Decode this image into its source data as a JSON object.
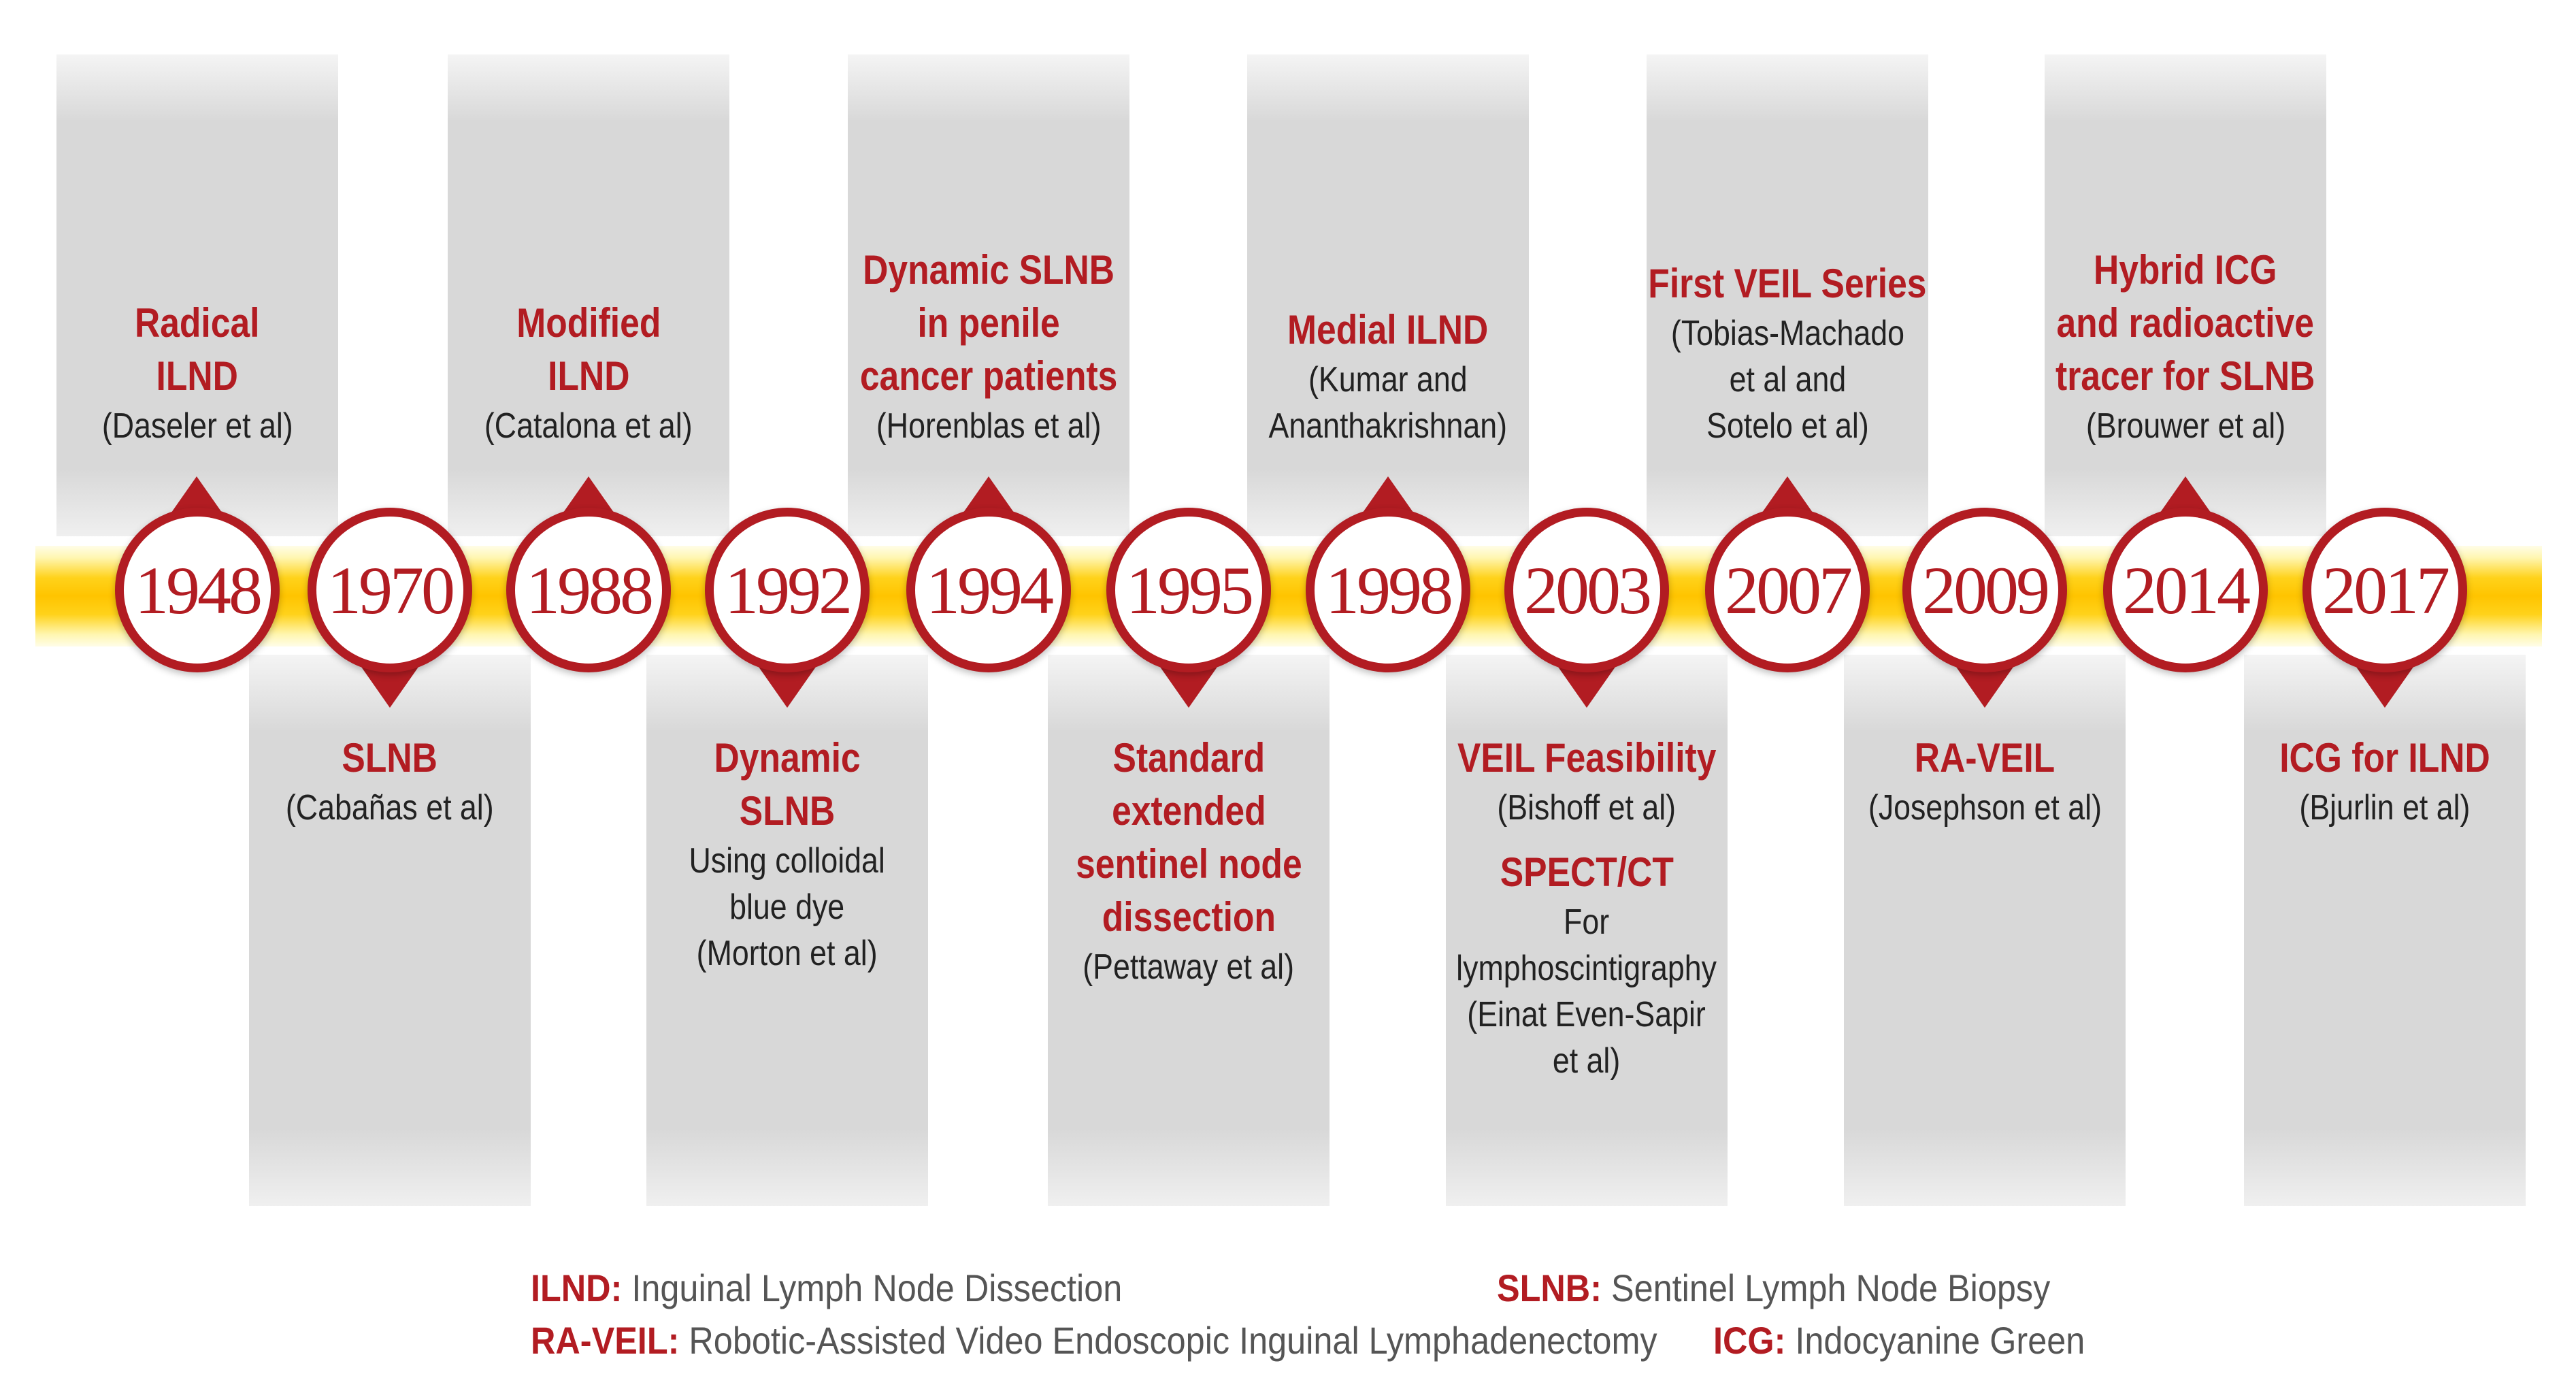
{
  "timeline": {
    "events": [
      {
        "year": "1948",
        "position": "top",
        "title": "Radical\nILND",
        "subtitle": "(Daseler et al)"
      },
      {
        "year": "1970",
        "position": "bottom",
        "title": "SLNB",
        "subtitle": "(Cabañas et al)"
      },
      {
        "year": "1988",
        "position": "top",
        "title": "Modified\nILND",
        "subtitle": "(Catalona et al)"
      },
      {
        "year": "1992",
        "position": "bottom",
        "title": "Dynamic\nSLNB",
        "subtitle": "Using colloidal\nblue dye\n(Morton et al)"
      },
      {
        "year": "1994",
        "position": "top",
        "title": "Dynamic SLNB\nin penile\ncancer patients",
        "subtitle": "(Horenblas et al)"
      },
      {
        "year": "1995",
        "position": "bottom",
        "title": "Standard\nextended\nsentinel node\ndissection",
        "subtitle": "(Pettaway et al)"
      },
      {
        "year": "1998",
        "position": "top",
        "title": "Medial ILND",
        "subtitle": "(Kumar and\nAnanthakrishnan)"
      },
      {
        "year": "2003",
        "position": "bottom",
        "title": "VEIL Feasibility",
        "subtitle": "(Bishoff et al)",
        "title2": "SPECT/CT",
        "subtitle2": "For\nlymphoscintigraphy\n(Einat Even-Sapir\net al)"
      },
      {
        "year": "2007",
        "position": "top",
        "title": "First VEIL Series",
        "subtitle": "(Tobias-Machado\net al and\nSotelo et al)"
      },
      {
        "year": "2009",
        "position": "bottom",
        "title": "RA-VEIL",
        "subtitle": "(Josephson et al)"
      },
      {
        "year": "2014",
        "position": "top",
        "title": "Hybrid ICG\nand radioactive\ntracer for SLNB",
        "subtitle": "(Brouwer et al)"
      },
      {
        "year": "2017",
        "position": "bottom",
        "title": "ICG for ILND",
        "subtitle": "(Bjurlin et al)"
      }
    ]
  },
  "legend": {
    "ilnd": {
      "abbr": "ILND:",
      "definition": "Inguinal Lymph Node Dissection"
    },
    "slnb": {
      "abbr": "SLNB:",
      "definition": "Sentinel Lymph Node Biopsy"
    },
    "raveil": {
      "abbr": "RA-VEIL:",
      "definition": "Robotic-Assisted Video Endoscopic Inguinal Lymphadenectomy"
    },
    "icg": {
      "abbr": "ICG:",
      "definition": "Indocyanine Green"
    }
  },
  "colors": {
    "accent": "#b21c22",
    "bar": "#ffc400",
    "panel": "#d8d8d8"
  }
}
